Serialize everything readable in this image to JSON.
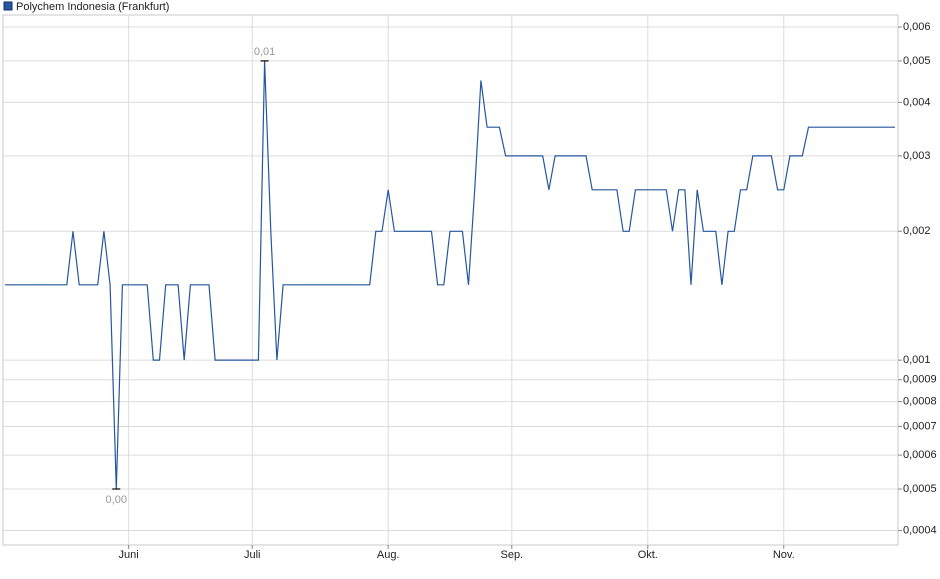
{
  "chart_data": {
    "type": "line",
    "log_scale": true,
    "grid": true,
    "series": [
      {
        "name": "Polychem Indonesia (Frankfurt)",
        "color": "#24579e",
        "values": [
          0.0015,
          0.0015,
          0.0015,
          0.0015,
          0.0015,
          0.0015,
          0.0015,
          0.0015,
          0.0015,
          0.0015,
          0.0015,
          0.002,
          0.0015,
          0.0015,
          0.0015,
          0.0015,
          0.002,
          0.0015,
          0.0005,
          0.0015,
          0.0015,
          0.0015,
          0.0015,
          0.0015,
          0.001,
          0.001,
          0.0015,
          0.0015,
          0.0015,
          0.001,
          0.0015,
          0.0015,
          0.0015,
          0.0015,
          0.001,
          0.001,
          0.001,
          0.001,
          0.001,
          0.001,
          0.001,
          0.001,
          0.005,
          0.002,
          0.001,
          0.0015,
          0.0015,
          0.0015,
          0.0015,
          0.0015,
          0.0015,
          0.0015,
          0.0015,
          0.0015,
          0.0015,
          0.0015,
          0.0015,
          0.0015,
          0.0015,
          0.0015,
          0.002,
          0.002,
          0.0025,
          0.002,
          0.002,
          0.002,
          0.002,
          0.002,
          0.002,
          0.002,
          0.0015,
          0.0015,
          0.002,
          0.002,
          0.002,
          0.0015,
          0.0025,
          0.0045,
          0.0035,
          0.0035,
          0.0035,
          0.003,
          0.003,
          0.003,
          0.003,
          0.003,
          0.003,
          0.003,
          0.0025,
          0.003,
          0.003,
          0.003,
          0.003,
          0.003,
          0.003,
          0.0025,
          0.0025,
          0.0025,
          0.0025,
          0.0025,
          0.002,
          0.002,
          0.0025,
          0.0025,
          0.0025,
          0.0025,
          0.0025,
          0.0025,
          0.002,
          0.0025,
          0.0025,
          0.0015,
          0.0025,
          0.002,
          0.002,
          0.002,
          0.0015,
          0.002,
          0.002,
          0.0025,
          0.0025,
          0.003,
          0.003,
          0.003,
          0.003,
          0.0025,
          0.0025,
          0.003,
          0.003,
          0.003,
          0.0035,
          0.0035,
          0.0035,
          0.0035,
          0.0035,
          0.0035,
          0.0035,
          0.0035,
          0.0035,
          0.0035,
          0.0035,
          0.0035,
          0.0035,
          0.0035,
          0.0035
        ],
        "value_labels": [
          null,
          null,
          null,
          null,
          null,
          null,
          null,
          null,
          null,
          null,
          null,
          null,
          null,
          null,
          null,
          null,
          null,
          null,
          "0,00",
          null,
          null,
          null,
          null,
          null,
          null,
          null,
          null,
          null,
          null,
          null,
          null,
          null,
          null,
          null,
          null,
          null,
          null,
          null,
          null,
          null,
          null,
          null,
          "0,01",
          null,
          null,
          null,
          null,
          null,
          null,
          null,
          null,
          null,
          null,
          null,
          null,
          null,
          null,
          null,
          null,
          null,
          null,
          null,
          null,
          null,
          null,
          null,
          null,
          null,
          null,
          null,
          null,
          null,
          null,
          null,
          null,
          null,
          null,
          null,
          null,
          null,
          null,
          null,
          null,
          null,
          null,
          null,
          null,
          null,
          null,
          null,
          null,
          null,
          null,
          null,
          null,
          null,
          null,
          null,
          null,
          null,
          null,
          null,
          null,
          null,
          null,
          null,
          null,
          null,
          null,
          null,
          null,
          null,
          null,
          null,
          null,
          null,
          null,
          null,
          null,
          null,
          null,
          null,
          null,
          null,
          null,
          null,
          null,
          null,
          null,
          null,
          null,
          null,
          null,
          null,
          null,
          null,
          null,
          null,
          null,
          null,
          null,
          null,
          null,
          null,
          null
        ]
      }
    ],
    "categories": [
      null,
      null,
      null,
      null,
      null,
      null,
      null,
      null,
      null,
      null,
      null,
      null,
      null,
      null,
      null,
      null,
      null,
      null,
      null,
      null,
      "Juni",
      null,
      null,
      null,
      null,
      null,
      null,
      null,
      null,
      null,
      null,
      null,
      null,
      null,
      null,
      null,
      null,
      null,
      null,
      null,
      "Juli",
      null,
      null,
      null,
      null,
      null,
      null,
      null,
      null,
      null,
      null,
      null,
      null,
      null,
      null,
      null,
      null,
      null,
      null,
      null,
      null,
      null,
      "Aug.",
      null,
      null,
      null,
      null,
      null,
      null,
      null,
      null,
      null,
      null,
      null,
      null,
      null,
      null,
      null,
      null,
      null,
      null,
      null,
      "Sep.",
      null,
      null,
      null,
      null,
      null,
      null,
      null,
      null,
      null,
      null,
      null,
      null,
      null,
      null,
      null,
      null,
      null,
      null,
      null,
      null,
      null,
      "Okt.",
      null,
      null,
      null,
      null,
      null,
      null,
      null,
      null,
      null,
      null,
      null,
      null,
      null,
      null,
      null,
      null,
      null,
      null,
      null,
      null,
      null,
      "Nov.",
      null,
      null,
      null,
      null,
      null,
      null,
      null,
      null,
      null,
      null,
      null,
      null,
      null,
      null,
      null,
      null,
      null,
      null
    ],
    "ylim": [
      0.00037,
      0.0064
    ],
    "yticks": [
      {
        "value": 0.0004,
        "label": "0,0004"
      },
      {
        "value": 0.0005,
        "label": "0,0005"
      },
      {
        "value": 0.0006,
        "label": "0,0006"
      },
      {
        "value": 0.0007,
        "label": "0,0007"
      },
      {
        "value": 0.0008,
        "label": "0,0008"
      },
      {
        "value": 0.0009,
        "label": "0,0009"
      },
      {
        "value": 0.001,
        "label": "0,001"
      },
      {
        "value": 0.002,
        "label": "0,002"
      },
      {
        "value": 0.003,
        "label": "0,003"
      },
      {
        "value": 0.004,
        "label": "0,004"
      },
      {
        "value": 0.005,
        "label": "0,005"
      },
      {
        "value": 0.006,
        "label": "0,006"
      }
    ]
  }
}
